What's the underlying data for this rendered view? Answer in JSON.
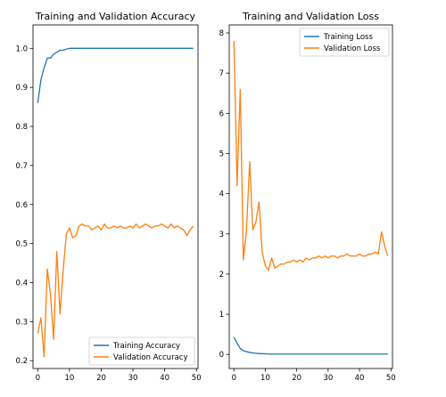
{
  "chart_data": [
    {
      "type": "line",
      "title": "Training and Validation Accuracy",
      "xlabel": "",
      "ylabel": "",
      "xlim": [
        -1.5,
        50.5
      ],
      "ylim": [
        0.18,
        1.06
      ],
      "xticks": [
        0,
        10,
        20,
        30,
        40,
        50
      ],
      "yticks": [
        0.2,
        0.3,
        0.4,
        0.5,
        0.6,
        0.7,
        0.8,
        0.9,
        1.0
      ],
      "ytick_labels": [
        "0.2",
        "0.3",
        "0.4",
        "0.5",
        "0.6",
        "0.7",
        "0.8",
        "0.9",
        "1.0"
      ],
      "grid": false,
      "legend_position": "lower-right",
      "series": [
        {
          "name": "Training Accuracy",
          "color": "#1f77b4",
          "x": [
            0,
            1,
            2,
            3,
            4,
            5,
            6,
            7,
            8,
            9,
            10,
            11,
            12,
            13,
            14,
            15,
            16,
            17,
            18,
            19,
            20,
            21,
            22,
            23,
            24,
            25,
            26,
            27,
            28,
            29,
            30,
            31,
            32,
            33,
            34,
            35,
            36,
            37,
            38,
            39,
            40,
            41,
            42,
            43,
            44,
            45,
            46,
            47,
            48,
            49
          ],
          "values": [
            0.86,
            0.92,
            0.95,
            0.975,
            0.975,
            0.985,
            0.99,
            0.995,
            0.995,
            0.998,
            1.0,
            1.0,
            1.0,
            1.0,
            1.0,
            1.0,
            1.0,
            1.0,
            1.0,
            1.0,
            1.0,
            1.0,
            1.0,
            1.0,
            1.0,
            1.0,
            1.0,
            1.0,
            1.0,
            1.0,
            1.0,
            1.0,
            1.0,
            1.0,
            1.0,
            1.0,
            1.0,
            1.0,
            1.0,
            1.0,
            1.0,
            1.0,
            1.0,
            1.0,
            1.0,
            1.0,
            1.0,
            1.0,
            1.0,
            1.0
          ]
        },
        {
          "name": "Validation Accuracy",
          "color": "#ff7f0e",
          "x": [
            0,
            1,
            2,
            3,
            4,
            5,
            6,
            7,
            8,
            9,
            10,
            11,
            12,
            13,
            14,
            15,
            16,
            17,
            18,
            19,
            20,
            21,
            22,
            23,
            24,
            25,
            26,
            27,
            28,
            29,
            30,
            31,
            32,
            33,
            34,
            35,
            36,
            37,
            38,
            39,
            40,
            41,
            42,
            43,
            44,
            45,
            46,
            47,
            48,
            49
          ],
          "values": [
            0.27,
            0.31,
            0.21,
            0.435,
            0.37,
            0.255,
            0.48,
            0.32,
            0.43,
            0.525,
            0.54,
            0.515,
            0.52,
            0.545,
            0.55,
            0.545,
            0.545,
            0.535,
            0.54,
            0.545,
            0.535,
            0.55,
            0.54,
            0.54,
            0.545,
            0.54,
            0.545,
            0.54,
            0.54,
            0.545,
            0.54,
            0.55,
            0.54,
            0.545,
            0.55,
            0.545,
            0.54,
            0.545,
            0.545,
            0.55,
            0.545,
            0.54,
            0.55,
            0.54,
            0.545,
            0.54,
            0.535,
            0.52,
            0.535,
            0.545
          ]
        }
      ]
    },
    {
      "type": "line",
      "title": "Training and Validation Loss",
      "xlabel": "",
      "ylabel": "",
      "xlim": [
        -1.5,
        50.5
      ],
      "ylim": [
        -0.35,
        8.2
      ],
      "xticks": [
        0,
        10,
        20,
        30,
        40,
        50
      ],
      "yticks": [
        0,
        1,
        2,
        3,
        4,
        5,
        6,
        7,
        8
      ],
      "ytick_labels": [
        "0",
        "1",
        "2",
        "3",
        "4",
        "5",
        "6",
        "7",
        "8"
      ],
      "grid": false,
      "legend_position": "upper-right",
      "series": [
        {
          "name": "Training Loss",
          "color": "#1f77b4",
          "x": [
            0,
            1,
            2,
            3,
            4,
            5,
            6,
            7,
            8,
            9,
            10,
            11,
            12,
            13,
            14,
            15,
            16,
            17,
            18,
            19,
            20,
            21,
            22,
            23,
            24,
            25,
            26,
            27,
            28,
            29,
            30,
            31,
            32,
            33,
            34,
            35,
            36,
            37,
            38,
            39,
            40,
            41,
            42,
            43,
            44,
            45,
            46,
            47,
            48,
            49
          ],
          "values": [
            0.43,
            0.28,
            0.15,
            0.09,
            0.07,
            0.05,
            0.04,
            0.03,
            0.02,
            0.02,
            0.015,
            0.01,
            0.01,
            0.01,
            0.01,
            0.01,
            0.01,
            0.01,
            0.01,
            0.01,
            0.01,
            0.01,
            0.01,
            0.01,
            0.01,
            0.01,
            0.01,
            0.01,
            0.01,
            0.01,
            0.01,
            0.01,
            0.01,
            0.01,
            0.01,
            0.01,
            0.01,
            0.01,
            0.01,
            0.01,
            0.01,
            0.01,
            0.01,
            0.01,
            0.01,
            0.01,
            0.01,
            0.01,
            0.01,
            0.01
          ]
        },
        {
          "name": "Validation Loss",
          "color": "#ff7f0e",
          "x": [
            0,
            1,
            2,
            3,
            4,
            5,
            6,
            7,
            8,
            9,
            10,
            11,
            12,
            13,
            14,
            15,
            16,
            17,
            18,
            19,
            20,
            21,
            22,
            23,
            24,
            25,
            26,
            27,
            28,
            29,
            30,
            31,
            32,
            33,
            34,
            35,
            36,
            37,
            38,
            39,
            40,
            41,
            42,
            43,
            44,
            45,
            46,
            47,
            48,
            49
          ],
          "values": [
            7.8,
            4.2,
            6.6,
            2.35,
            3.1,
            4.8,
            3.1,
            3.3,
            3.8,
            2.55,
            2.2,
            2.1,
            2.4,
            2.15,
            2.2,
            2.25,
            2.25,
            2.3,
            2.3,
            2.35,
            2.3,
            2.35,
            2.3,
            2.4,
            2.35,
            2.4,
            2.4,
            2.45,
            2.4,
            2.45,
            2.4,
            2.45,
            2.45,
            2.4,
            2.45,
            2.45,
            2.5,
            2.45,
            2.45,
            2.45,
            2.5,
            2.45,
            2.45,
            2.5,
            2.5,
            2.55,
            2.5,
            3.05,
            2.7,
            2.45
          ]
        }
      ]
    }
  ]
}
